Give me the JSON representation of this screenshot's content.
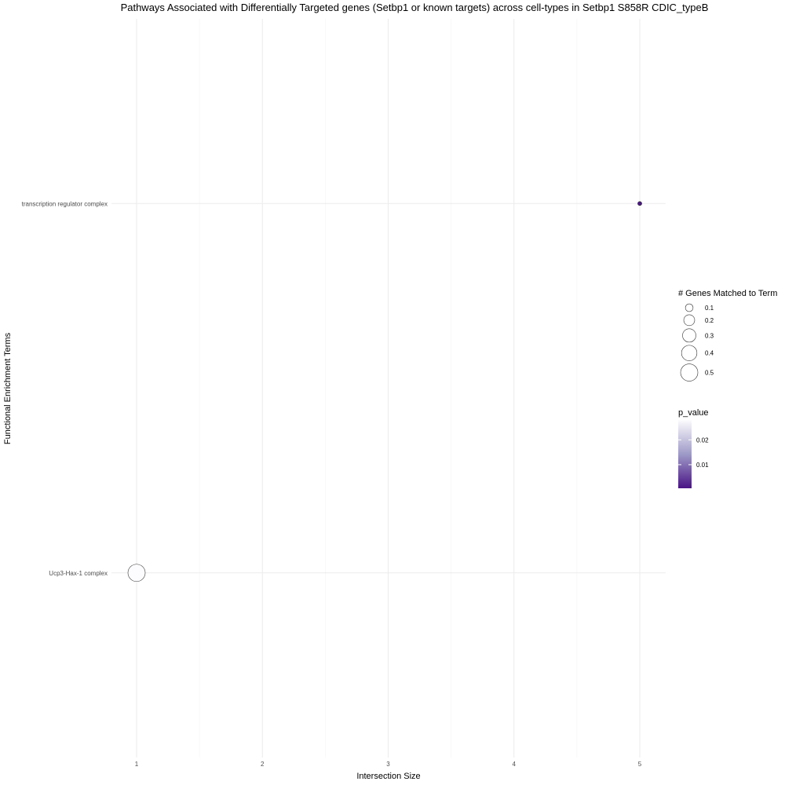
{
  "chart_data": {
    "type": "scatter",
    "title": "Pathways Associated with Differentially Targeted genes (Setbp1 or known targets) across cell-types in Setbp1 S858R CDIC_typeB",
    "xlabel": "Intersection Size",
    "ylabel": "Functional Enrichment Terms",
    "xlim": [
      0.95,
      5.2
    ],
    "x_ticks": [
      1,
      2,
      3,
      4,
      5
    ],
    "categories": [
      "Ucp3-Hax-1 complex",
      "transcription regulator complex"
    ],
    "points": [
      {
        "term": "transcription regulator complex",
        "x": 5,
        "gene_ratio": 0.02,
        "p_value": 0.0005
      },
      {
        "term": "Ucp3-Hax-1 complex",
        "x": 1,
        "gene_ratio": 0.5,
        "p_value": 0.028
      }
    ],
    "grid": true,
    "size_legend": {
      "title": "# Genes Matched to Term",
      "values": [
        0.1,
        0.2,
        0.3,
        0.4,
        0.5
      ]
    },
    "color_legend": {
      "title": "p_value",
      "range": [
        0.0005,
        0.028
      ],
      "ticks": [
        0.02,
        0.01
      ],
      "low_color": "#4a1486",
      "high_color": "#fcfbfd"
    },
    "legend_position": "right"
  }
}
